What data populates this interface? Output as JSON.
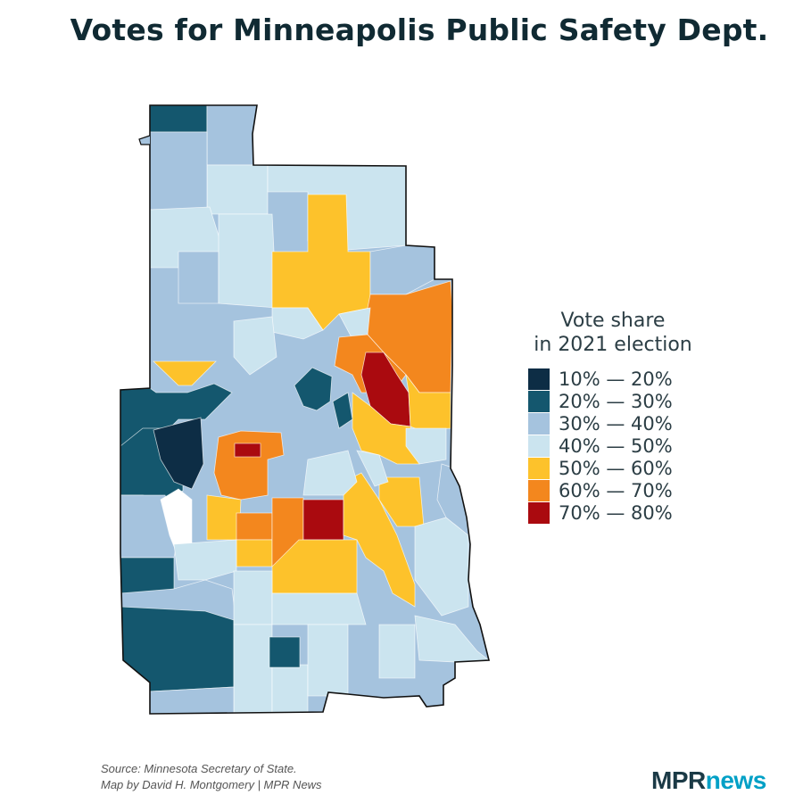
{
  "title": "Votes for Minneapolis Public Safety Dept.",
  "legend": {
    "title_line1": "Vote share",
    "title_line2": "in 2021 election",
    "items": [
      {
        "label": "10% — 20%",
        "color": "#0d2d45"
      },
      {
        "label": "20% — 30%",
        "color": "#14576e"
      },
      {
        "label": "30% — 40%",
        "color": "#a5c3de"
      },
      {
        "label": "40% — 50%",
        "color": "#cbe4ef"
      },
      {
        "label": "50% — 60%",
        "color": "#fdc22b"
      },
      {
        "label": "60% — 70%",
        "color": "#f3871e"
      },
      {
        "label": "70% — 80%",
        "color": "#aa0a0f"
      }
    ]
  },
  "source_line1": "Source: Minnesota Secretary of State.",
  "source_line2": "Map by David H. Montgomery | MPR News",
  "logo": {
    "mpr": "MPR",
    "news": "news"
  }
}
